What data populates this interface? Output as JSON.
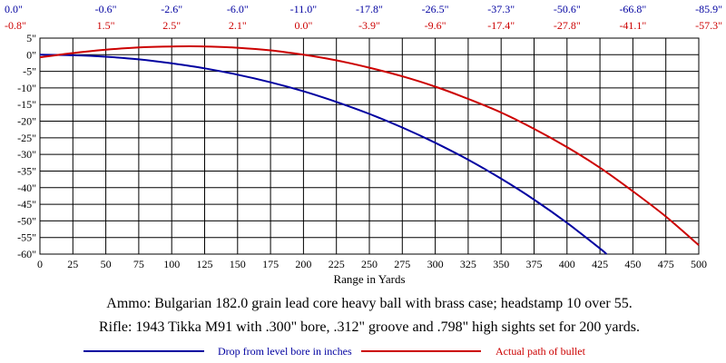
{
  "chart_data": {
    "type": "line",
    "title": "",
    "xlabel": "Range in Yards",
    "ylabel": "",
    "xlim": [
      0,
      500
    ],
    "ylim": [
      -60,
      5
    ],
    "grid": true,
    "x_ticks": [
      0,
      25,
      50,
      75,
      100,
      125,
      150,
      175,
      200,
      225,
      250,
      275,
      300,
      325,
      350,
      375,
      400,
      425,
      450,
      475,
      500
    ],
    "y_ticks": [
      5,
      0,
      -5,
      -10,
      -15,
      -20,
      -25,
      -30,
      -35,
      -40,
      -45,
      -50,
      -55,
      -60
    ],
    "y_tick_labels": [
      "5\"",
      "0\"",
      "-5\"",
      "-10\"",
      "-15\"",
      "-20\"",
      "-25\"",
      "-30\"",
      "-35\"",
      "-40\"",
      "-45\"",
      "-50\"",
      "-55\"",
      "-60\""
    ],
    "top_ranges": [
      0,
      50,
      100,
      150,
      200,
      250,
      300,
      350,
      400,
      450,
      500
    ],
    "top_drop_labels": [
      "0.0\"",
      "-0.6\"",
      "-2.6\"",
      "-6.0\"",
      "-11.0\"",
      "-17.8\"",
      "-26.5\"",
      "-37.3\"",
      "-50.6\"",
      "-66.8\"",
      "-85.9\""
    ],
    "top_path_labels": [
      "-0.8\"",
      "1.5\"",
      "2.5\"",
      "2.1\"",
      "0.0\"",
      "-3.9\"",
      "-9.6\"",
      "-17.4\"",
      "-27.8\"",
      "-41.1\"",
      "-57.3\""
    ],
    "series": [
      {
        "name": "Drop from level bore in inches",
        "color": "#0000a0",
        "x": [
          0,
          25,
          50,
          75,
          100,
          125,
          150,
          175,
          200,
          225,
          250,
          275,
          300,
          325,
          350,
          375,
          400,
          425,
          430
        ],
        "y": [
          0.0,
          -0.15,
          -0.6,
          -1.4,
          -2.6,
          -4.1,
          -6.0,
          -8.3,
          -11.0,
          -14.2,
          -17.8,
          -21.9,
          -26.5,
          -31.6,
          -37.3,
          -43.6,
          -50.6,
          -58.3,
          -60.0
        ]
      },
      {
        "name": "Actual path of bullet",
        "color": "#cc0000",
        "x": [
          0,
          25,
          50,
          75,
          100,
          125,
          150,
          175,
          200,
          225,
          250,
          275,
          300,
          325,
          350,
          375,
          400,
          425,
          450,
          475,
          500
        ],
        "y": [
          -0.8,
          0.5,
          1.5,
          2.2,
          2.5,
          2.5,
          2.1,
          1.3,
          0.0,
          -1.7,
          -3.9,
          -6.5,
          -9.6,
          -13.3,
          -17.4,
          -22.3,
          -27.8,
          -34.0,
          -41.1,
          -48.7,
          -57.3
        ]
      }
    ]
  },
  "notes": {
    "ammo": "Ammo:  Bulgarian 182.0 grain lead core heavy ball with brass case; headstamp 10 over 55.",
    "rifle": "Rifle:  1943 Tikka M91 with .300\" bore, .312\" groove and .798\" high sights set for 200 yards."
  },
  "legend": [
    {
      "label": "Drop from level bore in inches",
      "color": "#0000a0"
    },
    {
      "label": "Actual path of bullet",
      "color": "#cc0000"
    }
  ]
}
